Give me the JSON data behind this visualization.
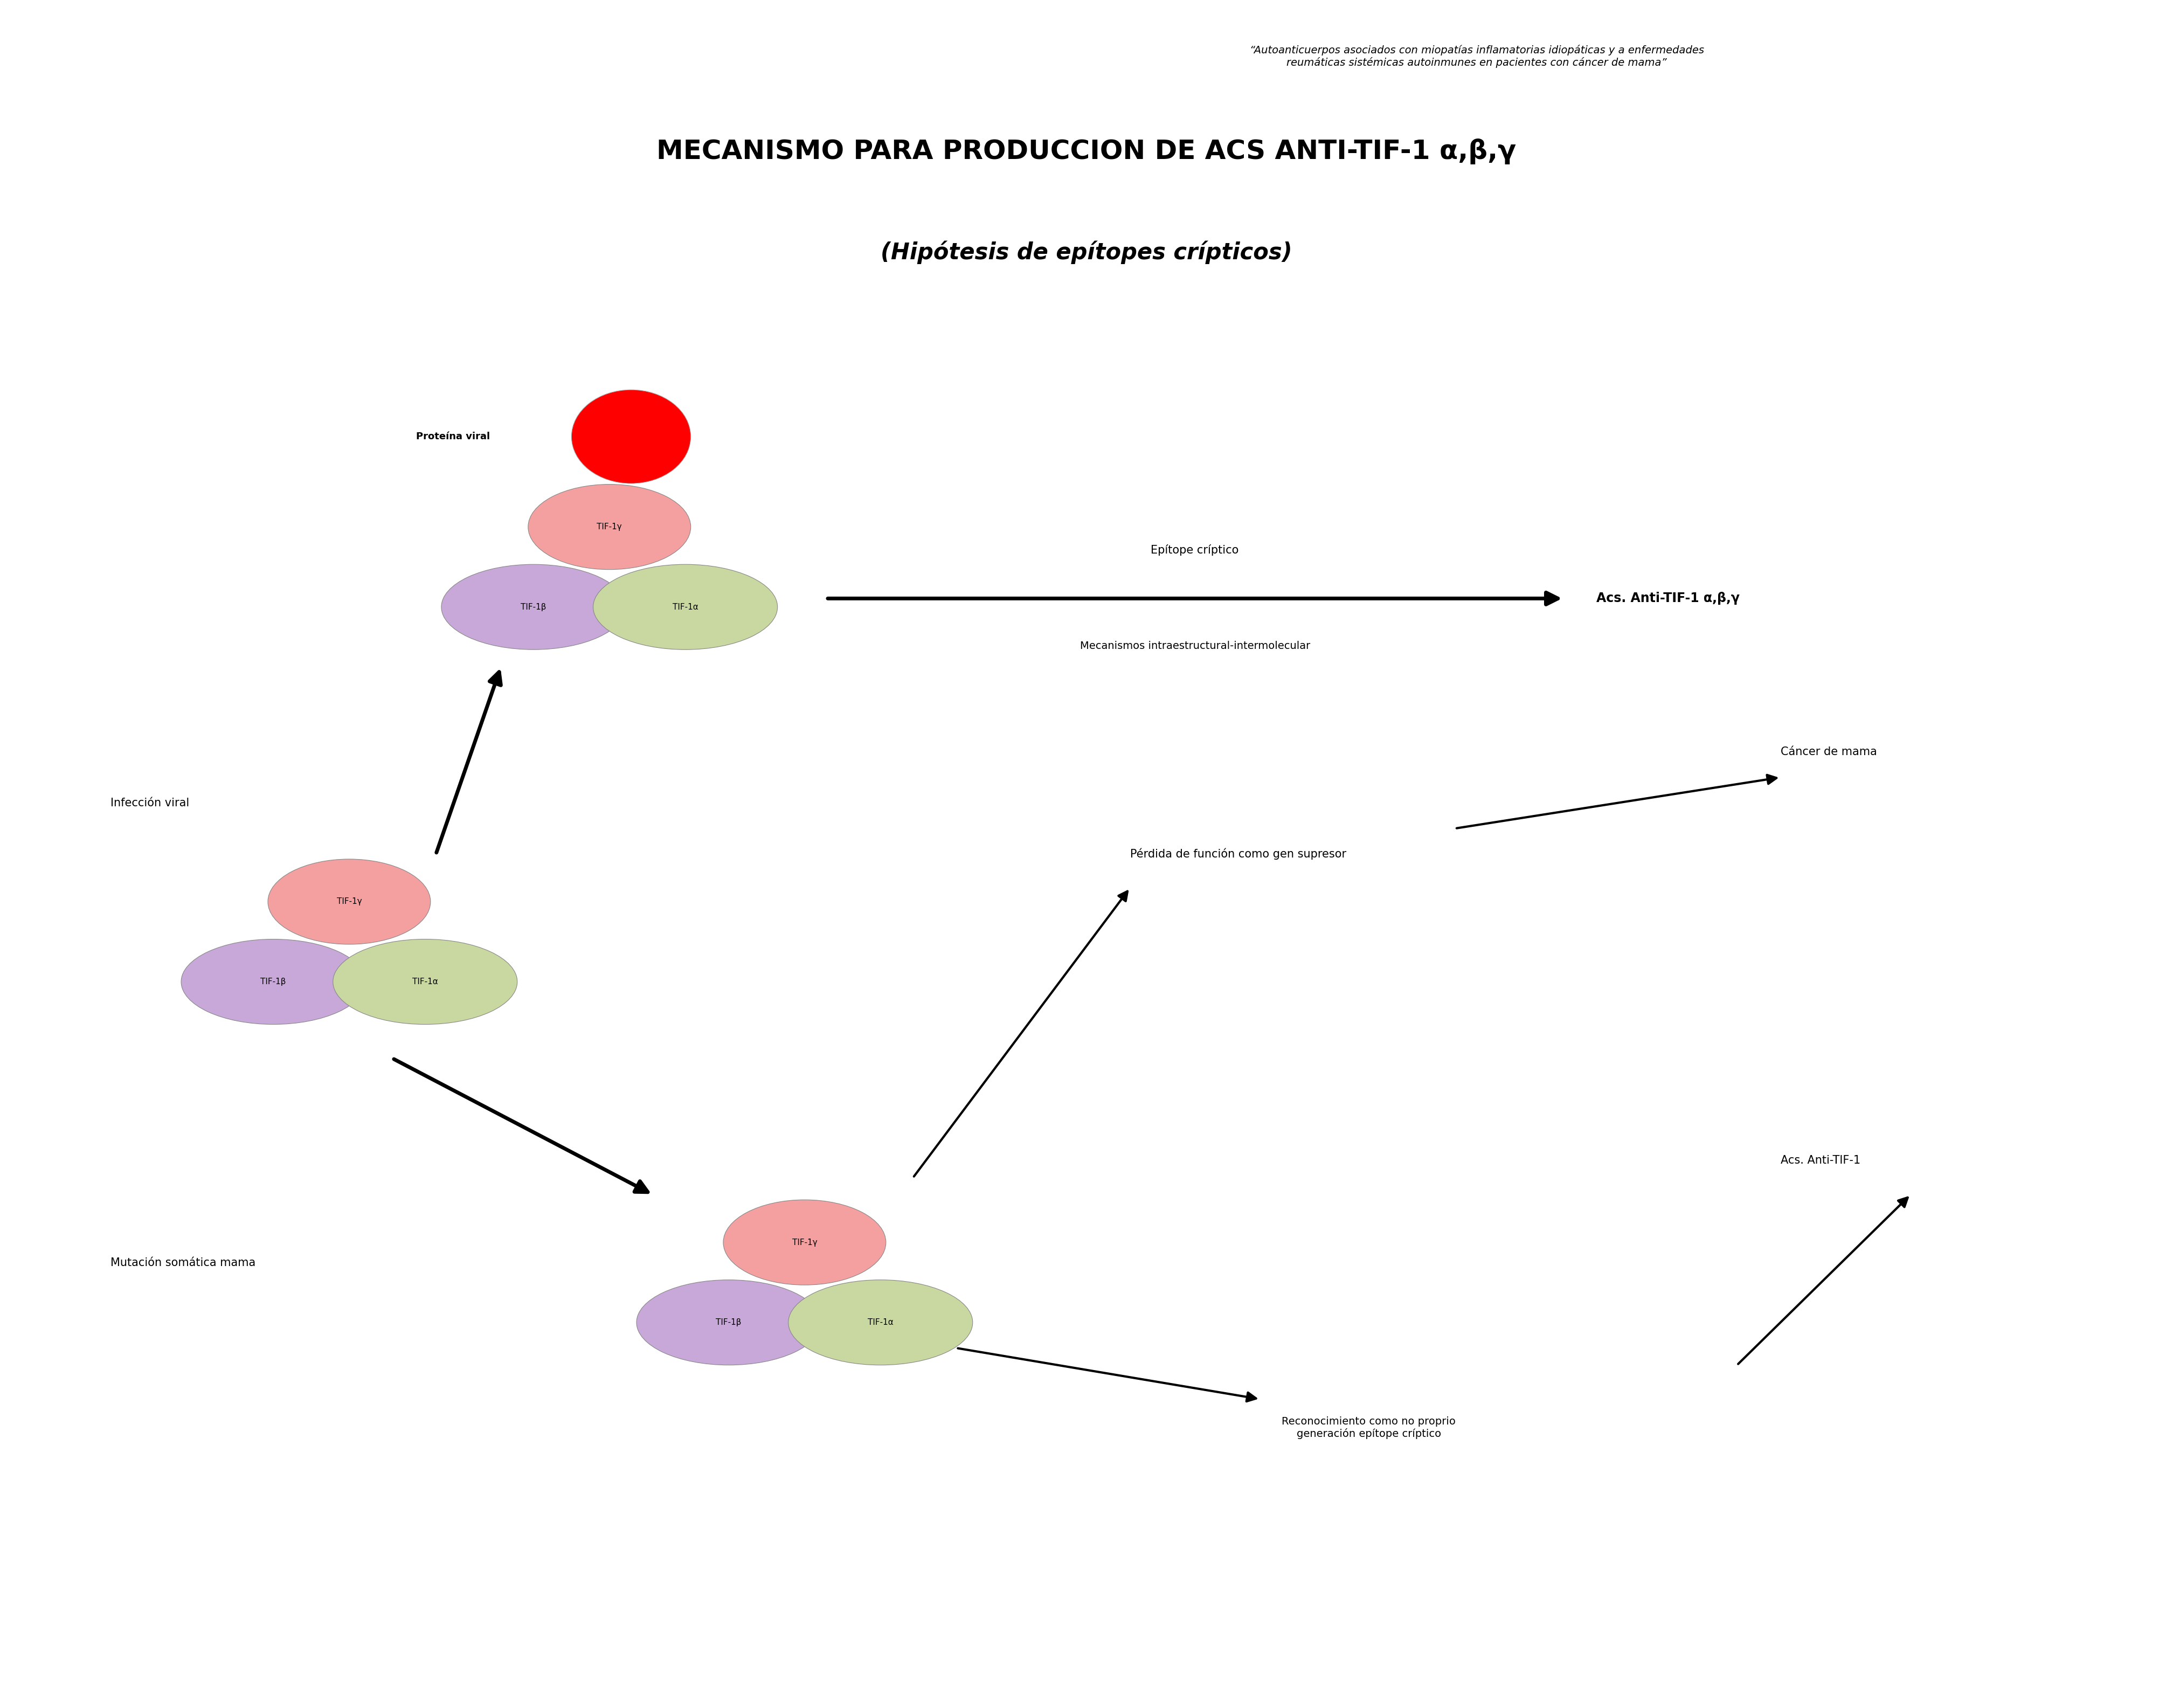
{
  "fig_width": 40.32,
  "fig_height": 31.69,
  "bg_color": "#ffffff",
  "header_text": "“Autoanticuerpos asociados con miopatías inflamatorias idiopáticas y a enfermedades\nreumáticas sistémicas autoinmunes en pacientes con cáncer de mama”",
  "title_line1": "MECANISMO PARA PRODUCCION DE ACS ANTI-TIF-1 α,β,γ",
  "title_line2": "(Hipótesis de epítopes crípticos)",
  "ellipse_pink_color": "#F4A0A0",
  "ellipse_purple_color": "#C8A8D8",
  "ellipse_green_color": "#C8D8A0",
  "red_circle_color": "#FF0000",
  "label_tif1g": "TIF-1γ",
  "label_tif1b": "TIF-1β",
  "label_tif1a": "TIF-1α",
  "text_proteina_viral": "Proteína viral",
  "text_epitope_criptico": "Epítope críptico",
  "text_acs_anti": "Acs. Anti-TIF-1 α,β,γ",
  "text_mecanismos": "Mecanismos intraestructural-intermolecular",
  "text_infeccion_viral": "Infección viral",
  "text_cancer_mama": "Cáncer de mama",
  "text_perdida_funcion": "Pérdida de función como gen supresor",
  "text_mutacion_somatica": "Mutación somática mama",
  "text_reconocimiento": "Reconocimiento como no proprio\ngeneración epítope críptico",
  "text_acs_anti_tif1": "Acs. Anti-TIF-1"
}
